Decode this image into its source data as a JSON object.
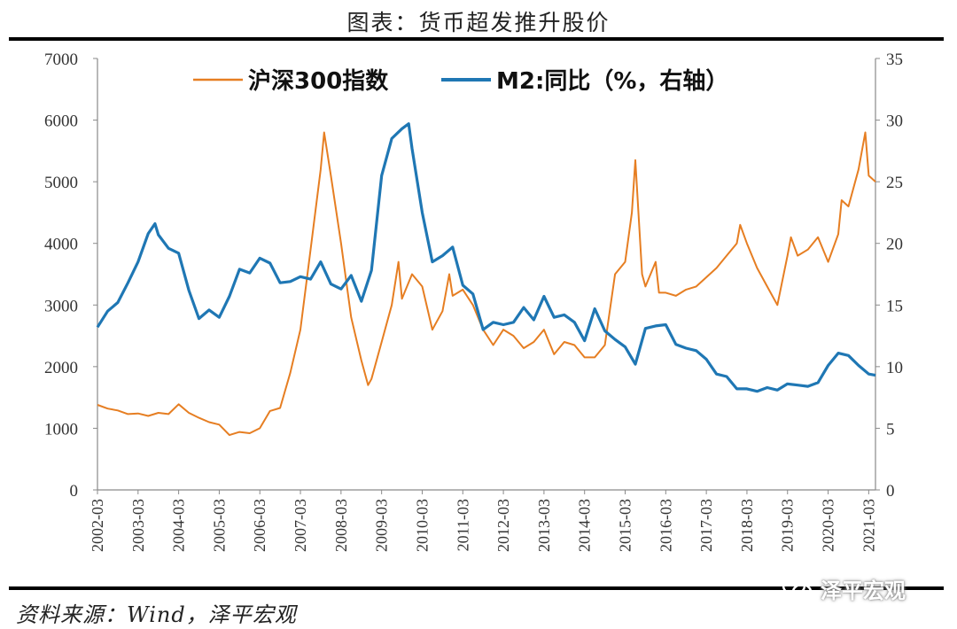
{
  "header": {
    "title": "图表：货币超发推升股价"
  },
  "footer": {
    "source": "资料来源：Wind，泽平宏观",
    "watermark": "泽平宏观"
  },
  "chart_data": {
    "type": "line",
    "title": "图表：货币超发推升股价",
    "x_tick_labels": [
      "2002-03",
      "2003-03",
      "2004-03",
      "2005-03",
      "2006-03",
      "2007-03",
      "2008-03",
      "2009-03",
      "2010-03",
      "2011-03",
      "2012-03",
      "2013-03",
      "2014-03",
      "2015-03",
      "2016-03",
      "2017-03",
      "2018-03",
      "2019-03",
      "2020-03",
      "2021-03"
    ],
    "x_range": [
      "2002-03",
      "2021-05"
    ],
    "y_left": {
      "range": [
        0,
        7000
      ],
      "ticks": [
        0,
        1000,
        2000,
        3000,
        4000,
        5000,
        6000,
        7000
      ]
    },
    "y_right": {
      "range": [
        0,
        35
      ],
      "ticks": [
        0,
        5,
        10,
        15,
        20,
        25,
        30,
        35
      ]
    },
    "grid": false,
    "legend": {
      "placement": "top"
    },
    "series": [
      {
        "name": "沪深300指数",
        "axis": "left",
        "color": "#E67E22",
        "points": [
          [
            "2002-03",
            1380
          ],
          [
            "2002-06",
            1320
          ],
          [
            "2002-09",
            1290
          ],
          [
            "2002-12",
            1230
          ],
          [
            "2003-03",
            1240
          ],
          [
            "2003-06",
            1200
          ],
          [
            "2003-09",
            1250
          ],
          [
            "2003-12",
            1230
          ],
          [
            "2004-03",
            1390
          ],
          [
            "2004-06",
            1250
          ],
          [
            "2004-09",
            1170
          ],
          [
            "2004-12",
            1100
          ],
          [
            "2005-03",
            1060
          ],
          [
            "2005-06",
            890
          ],
          [
            "2005-09",
            940
          ],
          [
            "2005-12",
            920
          ],
          [
            "2006-03",
            1000
          ],
          [
            "2006-06",
            1280
          ],
          [
            "2006-09",
            1330
          ],
          [
            "2006-12",
            1900
          ],
          [
            "2007-03",
            2600
          ],
          [
            "2007-06",
            3900
          ],
          [
            "2007-09",
            5200
          ],
          [
            "2007-10",
            5800
          ],
          [
            "2007-12",
            5100
          ],
          [
            "2008-03",
            4000
          ],
          [
            "2008-06",
            2800
          ],
          [
            "2008-09",
            2100
          ],
          [
            "2008-11",
            1700
          ],
          [
            "2008-12",
            1800
          ],
          [
            "2009-03",
            2400
          ],
          [
            "2009-06",
            3000
          ],
          [
            "2009-08",
            3700
          ],
          [
            "2009-09",
            3100
          ],
          [
            "2009-12",
            3500
          ],
          [
            "2010-03",
            3300
          ],
          [
            "2010-06",
            2600
          ],
          [
            "2010-09",
            2900
          ],
          [
            "2010-11",
            3500
          ],
          [
            "2010-12",
            3150
          ],
          [
            "2011-03",
            3250
          ],
          [
            "2011-06",
            3000
          ],
          [
            "2011-09",
            2600
          ],
          [
            "2011-12",
            2350
          ],
          [
            "2012-03",
            2600
          ],
          [
            "2012-06",
            2500
          ],
          [
            "2012-09",
            2300
          ],
          [
            "2012-12",
            2400
          ],
          [
            "2013-03",
            2600
          ],
          [
            "2013-06",
            2200
          ],
          [
            "2013-09",
            2400
          ],
          [
            "2013-12",
            2350
          ],
          [
            "2014-03",
            2150
          ],
          [
            "2014-06",
            2150
          ],
          [
            "2014-09",
            2350
          ],
          [
            "2014-12",
            3500
          ],
          [
            "2015-03",
            3700
          ],
          [
            "2015-05",
            4500
          ],
          [
            "2015-06",
            5350
          ],
          [
            "2015-08",
            3500
          ],
          [
            "2015-09",
            3300
          ],
          [
            "2015-12",
            3700
          ],
          [
            "2016-01",
            3200
          ],
          [
            "2016-03",
            3200
          ],
          [
            "2016-06",
            3150
          ],
          [
            "2016-09",
            3250
          ],
          [
            "2016-12",
            3300
          ],
          [
            "2017-03",
            3450
          ],
          [
            "2017-06",
            3600
          ],
          [
            "2017-09",
            3800
          ],
          [
            "2017-12",
            4000
          ],
          [
            "2018-01",
            4300
          ],
          [
            "2018-03",
            4000
          ],
          [
            "2018-06",
            3600
          ],
          [
            "2018-09",
            3300
          ],
          [
            "2018-12",
            3000
          ],
          [
            "2019-03",
            3800
          ],
          [
            "2019-04",
            4100
          ],
          [
            "2019-06",
            3800
          ],
          [
            "2019-09",
            3900
          ],
          [
            "2019-12",
            4100
          ],
          [
            "2020-03",
            3700
          ],
          [
            "2020-06",
            4150
          ],
          [
            "2020-07",
            4700
          ],
          [
            "2020-09",
            4600
          ],
          [
            "2020-12",
            5200
          ],
          [
            "2021-02",
            5800
          ],
          [
            "2021-03",
            5100
          ],
          [
            "2021-05",
            5000
          ]
        ]
      },
      {
        "name": "M2:同比（%，右轴）",
        "axis": "right",
        "color": "#1F77B4",
        "points": [
          [
            "2002-03",
            13.2
          ],
          [
            "2002-06",
            14.5
          ],
          [
            "2002-09",
            15.2
          ],
          [
            "2002-12",
            16.8
          ],
          [
            "2003-03",
            18.5
          ],
          [
            "2003-06",
            20.8
          ],
          [
            "2003-08",
            21.6
          ],
          [
            "2003-09",
            20.7
          ],
          [
            "2003-12",
            19.6
          ],
          [
            "2004-03",
            19.2
          ],
          [
            "2004-06",
            16.2
          ],
          [
            "2004-09",
            13.9
          ],
          [
            "2004-12",
            14.6
          ],
          [
            "2005-03",
            14.0
          ],
          [
            "2005-06",
            15.7
          ],
          [
            "2005-09",
            17.9
          ],
          [
            "2005-12",
            17.6
          ],
          [
            "2006-03",
            18.8
          ],
          [
            "2006-06",
            18.4
          ],
          [
            "2006-09",
            16.8
          ],
          [
            "2006-12",
            16.9
          ],
          [
            "2007-03",
            17.3
          ],
          [
            "2007-06",
            17.1
          ],
          [
            "2007-09",
            18.5
          ],
          [
            "2007-12",
            16.7
          ],
          [
            "2008-03",
            16.3
          ],
          [
            "2008-06",
            17.4
          ],
          [
            "2008-09",
            15.3
          ],
          [
            "2008-12",
            17.8
          ],
          [
            "2009-03",
            25.5
          ],
          [
            "2009-06",
            28.5
          ],
          [
            "2009-09",
            29.3
          ],
          [
            "2009-11",
            29.7
          ],
          [
            "2009-12",
            27.7
          ],
          [
            "2010-03",
            22.5
          ],
          [
            "2010-06",
            18.5
          ],
          [
            "2010-09",
            19.0
          ],
          [
            "2010-12",
            19.7
          ],
          [
            "2011-03",
            16.6
          ],
          [
            "2011-06",
            15.9
          ],
          [
            "2011-09",
            13.0
          ],
          [
            "2011-12",
            13.6
          ],
          [
            "2012-03",
            13.4
          ],
          [
            "2012-06",
            13.6
          ],
          [
            "2012-09",
            14.8
          ],
          [
            "2012-12",
            13.8
          ],
          [
            "2013-03",
            15.7
          ],
          [
            "2013-06",
            14.0
          ],
          [
            "2013-09",
            14.2
          ],
          [
            "2013-12",
            13.6
          ],
          [
            "2014-03",
            12.1
          ],
          [
            "2014-06",
            14.7
          ],
          [
            "2014-09",
            12.9
          ],
          [
            "2014-12",
            12.2
          ],
          [
            "2015-03",
            11.6
          ],
          [
            "2015-06",
            10.2
          ],
          [
            "2015-09",
            13.1
          ],
          [
            "2015-12",
            13.3
          ],
          [
            "2016-03",
            13.4
          ],
          [
            "2016-06",
            11.8
          ],
          [
            "2016-09",
            11.5
          ],
          [
            "2016-12",
            11.3
          ],
          [
            "2017-03",
            10.6
          ],
          [
            "2017-06",
            9.4
          ],
          [
            "2017-09",
            9.2
          ],
          [
            "2017-12",
            8.2
          ],
          [
            "2018-03",
            8.2
          ],
          [
            "2018-06",
            8.0
          ],
          [
            "2018-09",
            8.3
          ],
          [
            "2018-12",
            8.1
          ],
          [
            "2019-03",
            8.6
          ],
          [
            "2019-06",
            8.5
          ],
          [
            "2019-09",
            8.4
          ],
          [
            "2019-12",
            8.7
          ],
          [
            "2020-03",
            10.1
          ],
          [
            "2020-06",
            11.1
          ],
          [
            "2020-09",
            10.9
          ],
          [
            "2020-12",
            10.1
          ],
          [
            "2021-03",
            9.4
          ],
          [
            "2021-05",
            9.3
          ]
        ]
      }
    ]
  }
}
